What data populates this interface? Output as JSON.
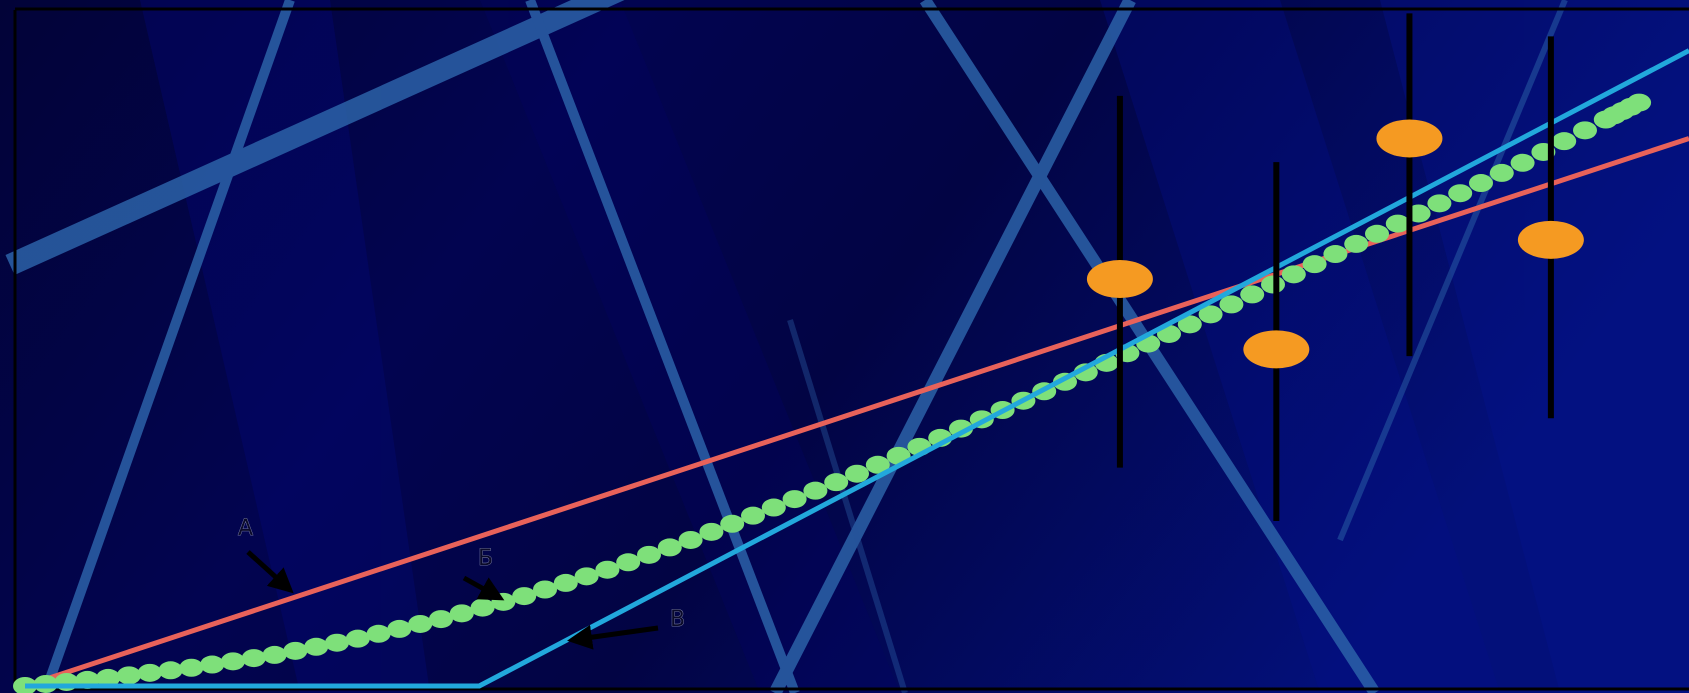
{
  "chart_data": {
    "type": "line",
    "title": "",
    "xlabel": "",
    "ylabel": "",
    "xlim": [
      0,
      100
    ],
    "ylim": [
      0,
      100
    ],
    "grid": false,
    "legend": "none",
    "series": [
      {
        "name": "А",
        "style": "line",
        "color": "#e8625a",
        "x": [
          0,
          100
        ],
        "y": [
          0,
          81
        ]
      },
      {
        "name": "Б",
        "style": "dotted",
        "color": "#7ee07a",
        "x": [
          0,
          5,
          10,
          15,
          20,
          25,
          30,
          35,
          40,
          45,
          50,
          55,
          60,
          65,
          70,
          75,
          80,
          85,
          90,
          95,
          97
        ],
        "y": [
          0,
          1.2,
          2.7,
          4.6,
          7.0,
          9.9,
          13.3,
          17.2,
          21.6,
          26.4,
          31.4,
          36.7,
          42.2,
          47.8,
          53.5,
          59.4,
          65.4,
          71.4,
          77.4,
          83.8,
          86.3
        ]
      },
      {
        "name": "В",
        "style": "line",
        "color": "#22a8dc",
        "x": [
          0,
          27.3,
          100
        ],
        "y": [
          0,
          0,
          94
        ]
      }
    ],
    "observations": {
      "color": "#f59a22",
      "points": [
        {
          "x": 65.8,
          "y": 60.2,
          "ylow": 32.3,
          "yhigh": 87.3
        },
        {
          "x": 75.2,
          "y": 49.8,
          "ylow": 24.4,
          "yhigh": 77.5
        },
        {
          "x": 83.2,
          "y": 81.0,
          "ylow": 48.8,
          "yhigh": 99.5
        },
        {
          "x": 91.7,
          "y": 66.0,
          "ylow": 39.6,
          "yhigh": 96.1
        }
      ]
    },
    "annotations": [
      {
        "text": "А",
        "target_series": "А"
      },
      {
        "text": "Б",
        "target_series": "Б"
      },
      {
        "text": "В",
        "target_series": "В"
      }
    ]
  },
  "colors": {
    "background": "#02034a",
    "background_light": "#03138a",
    "sweep_band": "#2c62a8",
    "axis": "#000000",
    "arrow": "#000000"
  }
}
